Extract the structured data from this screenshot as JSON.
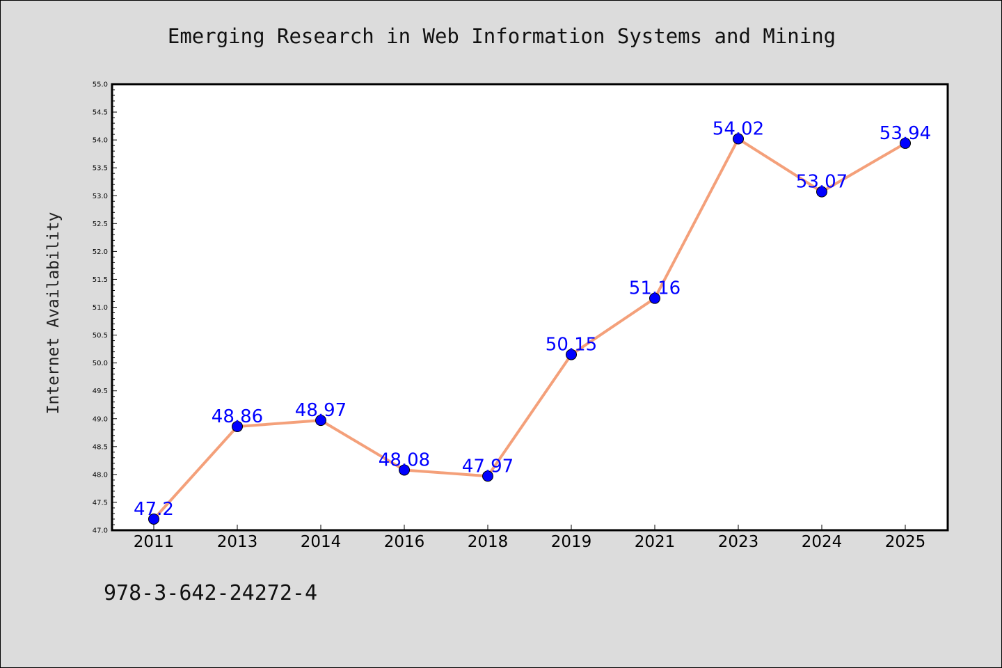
{
  "title": "Emerging Research in Web Information Systems and Mining",
  "footnote": "978-3-642-24272-4",
  "chart_data": {
    "type": "line",
    "title": "Emerging Research in Web Information Systems and Mining",
    "xlabel": "",
    "ylabel": "Internet Availability",
    "categories": [
      "2011",
      "2013",
      "2014",
      "2016",
      "2018",
      "2019",
      "2021",
      "2023",
      "2024",
      "2025"
    ],
    "values": [
      47.2,
      48.86,
      48.97,
      48.08,
      47.97,
      50.15,
      51.16,
      54.02,
      53.07,
      53.94
    ],
    "data_labels": [
      "47.2",
      "48.86",
      "48.97",
      "48.08",
      "47.97",
      "50.15",
      "51.16",
      "54.02",
      "53.07",
      "53.94"
    ],
    "ylim": [
      47.0,
      55.0
    ],
    "yticks": [
      "47.0",
      "47.5",
      "48.0",
      "48.5",
      "49.0",
      "49.5",
      "50.0",
      "50.5",
      "51.0",
      "51.5",
      "52.0",
      "52.5",
      "53.0",
      "53.5",
      "54.0",
      "54.5",
      "55.0"
    ],
    "grid": false,
    "legend": "none",
    "colors": {
      "line": "#f4a07a",
      "marker": "#0000ff",
      "data_label": "#0000ff",
      "background": "#dcdcdc",
      "plot_background": "#ffffff"
    }
  }
}
